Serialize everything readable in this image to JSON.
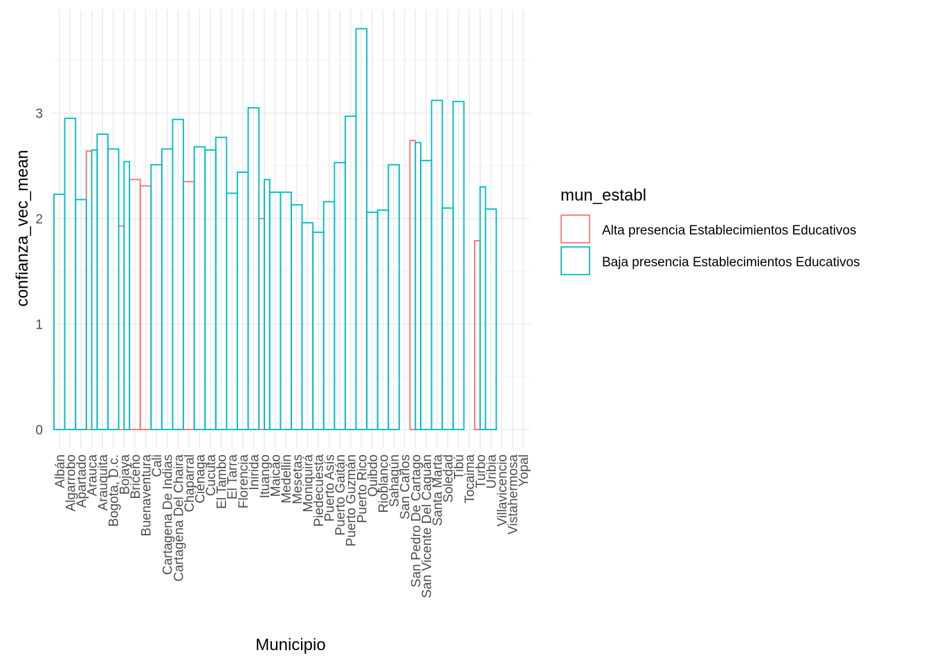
{
  "chart_data": {
    "type": "bar",
    "xlabel": "Municipio",
    "ylabel": "confianza_vec_mean",
    "ylim": [
      0,
      3.9
    ],
    "yticks": [
      0,
      1,
      2,
      3
    ],
    "grid": true,
    "legend": {
      "title": "mun_establ",
      "position": "right",
      "entries": [
        {
          "label": "Alta presencia Establecimientos Educativos",
          "color": "#F8766D"
        },
        {
          "label": "Baja presencia Establecimientos Educativos",
          "color": "#00BFC4"
        }
      ]
    },
    "categories": [
      "Albán",
      "Algarrobo",
      "Apartado",
      "Arauca",
      "Arauquita",
      "Bogota, D.c.",
      "Bojaya",
      "Briceño",
      "Buenaventura",
      "Cali",
      "Cartagena De Indias",
      "Cartagena Del Chaira",
      "Chaparral",
      "Ciénaga",
      "Cucuta",
      "El Tambo",
      "El Tarra",
      "Florencia",
      "Inirida",
      "Ituango",
      "Maicao",
      "Medellin",
      "Mesetas",
      "Moniquirá",
      "Piedecuesta",
      "Puerto Asís",
      "Puerto Gaitán",
      "Puerto Guzmán",
      "Puerto Rico",
      "Quibdo",
      "Rioblanco",
      "Sahagún",
      "San Carlos",
      "San Pedro De Cartago",
      "San Vicente Del Caguán",
      "Santa Marta",
      "Soledad",
      "Tibú",
      "Tocaima",
      "Turbo",
      "Uribia",
      "Villavicencio",
      "Vistahermosa",
      "Yopal"
    ],
    "series": [
      {
        "name": "Alta presencia Establecimientos Educativos",
        "color": "#F8766D",
        "bars": [
          {
            "category": "Arauca",
            "value": 2.64
          },
          {
            "category": "Bojaya",
            "value": 1.93
          },
          {
            "category": "Briceño",
            "value": 2.37
          },
          {
            "category": "Buenaventura",
            "value": 2.31
          },
          {
            "category": "Chaparral",
            "value": 2.35
          },
          {
            "category": "Ituango",
            "value": 2.0
          },
          {
            "category": "San Pedro De Cartago",
            "value": 2.74
          },
          {
            "category": "Turbo",
            "value": 1.79
          }
        ]
      },
      {
        "name": "Baja presencia Establecimientos Educativos",
        "color": "#00BFC4",
        "bars": [
          {
            "category": "Albán",
            "value": 2.23
          },
          {
            "category": "Algarrobo",
            "value": 2.95
          },
          {
            "category": "Apartado",
            "value": 2.18
          },
          {
            "category": "Arauca",
            "value": 2.65
          },
          {
            "category": "Arauquita",
            "value": 2.8
          },
          {
            "category": "Bogota, D.c.",
            "value": 2.66
          },
          {
            "category": "Bojaya",
            "value": 2.54
          },
          {
            "category": "Cali",
            "value": 2.51
          },
          {
            "category": "Cartagena De Indias",
            "value": 2.66
          },
          {
            "category": "Cartagena Del Chaira",
            "value": 2.94
          },
          {
            "category": "Ciénaga",
            "value": 2.68
          },
          {
            "category": "Cucuta",
            "value": 2.65
          },
          {
            "category": "El Tambo",
            "value": 2.77
          },
          {
            "category": "El Tarra",
            "value": 2.24
          },
          {
            "category": "Florencia",
            "value": 2.44
          },
          {
            "category": "Inirida",
            "value": 3.05
          },
          {
            "category": "Ituango",
            "value": 2.37
          },
          {
            "category": "Maicao",
            "value": 2.25
          },
          {
            "category": "Medellin",
            "value": 2.25
          },
          {
            "category": "Mesetas",
            "value": 2.13
          },
          {
            "category": "Moniquirá",
            "value": 1.96
          },
          {
            "category": "Piedecuesta",
            "value": 1.87
          },
          {
            "category": "Puerto Asís",
            "value": 2.16
          },
          {
            "category": "Puerto Gaitán",
            "value": 2.53
          },
          {
            "category": "Puerto Guzmán",
            "value": 2.97
          },
          {
            "category": "Puerto Rico",
            "value": 3.8
          },
          {
            "category": "Quibdo",
            "value": 2.06
          },
          {
            "category": "Rioblanco",
            "value": 2.08
          },
          {
            "category": "Sahagún",
            "value": 2.51
          },
          {
            "category": "San Pedro De Cartago",
            "value": 2.72
          },
          {
            "category": "San Vicente Del Caguán",
            "value": 2.55
          },
          {
            "category": "Santa Marta",
            "value": 3.12
          },
          {
            "category": "Soledad",
            "value": 2.1
          },
          {
            "category": "Tibú",
            "value": 3.11
          },
          {
            "category": "Turbo",
            "value": 2.3
          },
          {
            "category": "Uribia",
            "value": 2.09
          }
        ]
      }
    ]
  }
}
